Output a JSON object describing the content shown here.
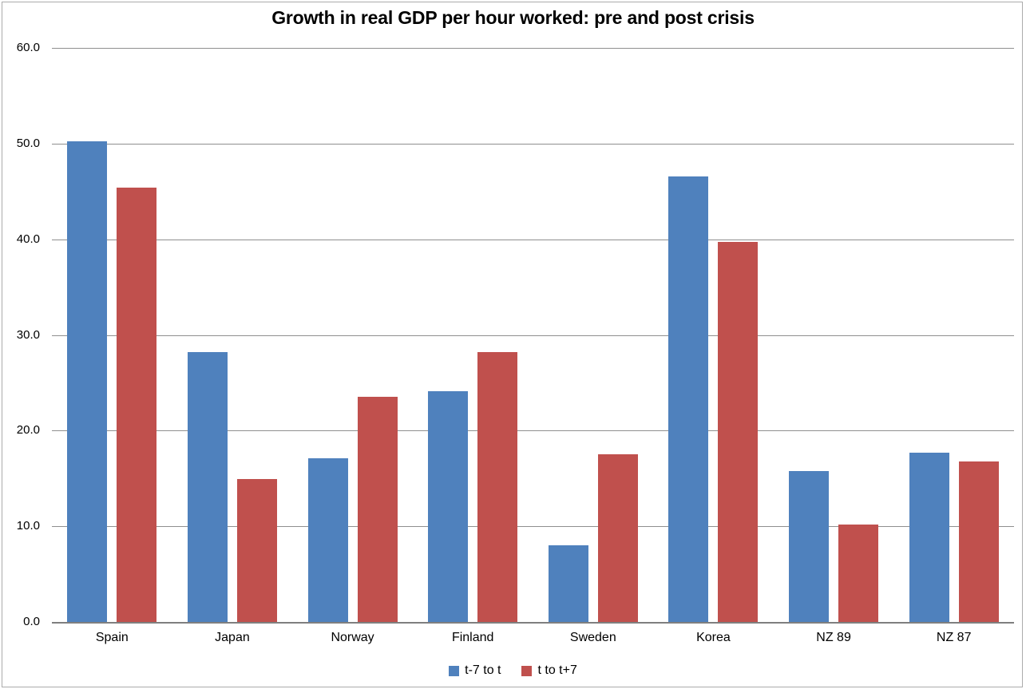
{
  "chart_data": {
    "type": "bar",
    "title": "Growth in real GDP per hour worked: pre and post crisis",
    "categories": [
      "Spain",
      "Japan",
      "Norway",
      "Finland",
      "Sweden",
      "Korea",
      "NZ 89",
      "NZ 87"
    ],
    "series": [
      {
        "name": "t-7 to t",
        "color": "#4F81BD",
        "values": [
          50.2,
          28.2,
          17.1,
          24.1,
          8.0,
          46.6,
          15.8,
          17.7
        ]
      },
      {
        "name": "t to t+7",
        "color": "#C0504D",
        "values": [
          45.4,
          14.9,
          23.5,
          28.2,
          17.5,
          39.7,
          10.2,
          16.8
        ]
      }
    ],
    "xlabel": "",
    "ylabel": "",
    "ylim": [
      0,
      60
    ],
    "ytick_step": 10,
    "ytick_labels": [
      "0.0",
      "10.0",
      "20.0",
      "30.0",
      "40.0",
      "50.0",
      "60.0"
    ],
    "grid": true,
    "legend_position": "bottom"
  },
  "colors": {
    "background": "#FFFFFF",
    "frame_border": "#ABABAB",
    "gridline": "#8F8F8F",
    "axis_line": "#7F7F7F",
    "text": "#000000",
    "series_blue": "#4F81BD",
    "series_red": "#C0504D"
  }
}
